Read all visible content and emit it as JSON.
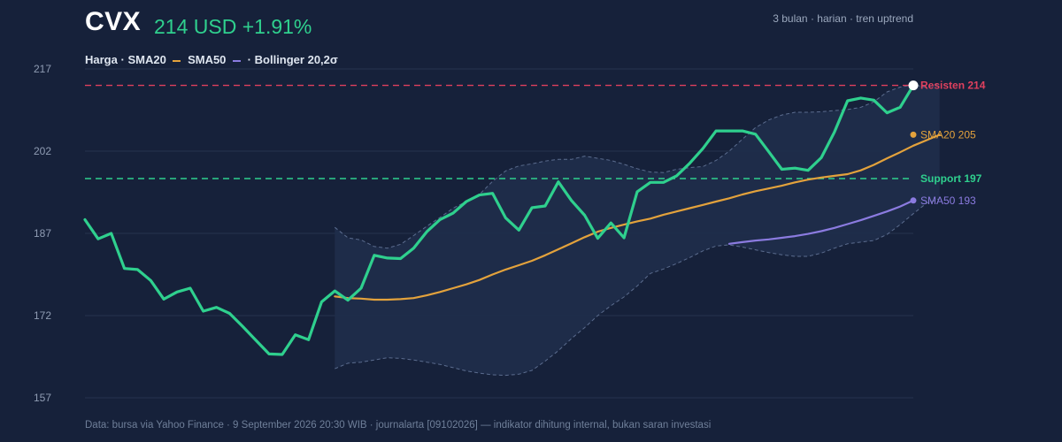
{
  "header": {
    "ticker": "CVX",
    "price": "214 USD +1.91%",
    "subtitle": "3 bulan · harian · tren uptrend"
  },
  "legend": {
    "label_price": "Harga",
    "sep": "·",
    "label_sma20": "SMA20",
    "label_sma50": "SMA50",
    "label_bb": "Bollinger 20,2σ"
  },
  "footer": "Data: bursa via Yahoo Finance · 9 September 2026 20:30 WIB · journalarta [09102026] — indikator dihitung internal, bukan saran investasi",
  "colors": {
    "background": "#16213a",
    "price": "#2fd08e",
    "sma20": "#e3a23c",
    "sma50": "#8b7be0",
    "band_fill": "#1f2d4b",
    "band_edge": "#5b6c8e",
    "resistance": "#e0405e",
    "support": "#2fd08e",
    "grid": "#26344f"
  },
  "chart_data": {
    "type": "line",
    "ylim": [
      157,
      217
    ],
    "yticks": [
      157,
      172,
      187,
      202,
      217
    ],
    "grid": true,
    "n_points": 64,
    "series": [
      {
        "name": "Harga",
        "start_index": 0,
        "values": [
          189.5,
          186.0,
          187.0,
          180.6,
          180.4,
          178.4,
          175.0,
          176.3,
          177.0,
          172.8,
          173.5,
          172.4,
          170.0,
          167.5,
          165.0,
          164.9,
          168.5,
          167.6,
          174.5,
          176.5,
          174.8,
          177.0,
          183.0,
          182.5,
          182.4,
          184.3,
          187.3,
          189.5,
          190.7,
          192.8,
          194.0,
          194.3,
          189.8,
          187.6,
          191.7,
          192.0,
          196.4,
          193.0,
          190.3,
          186.1,
          188.9,
          186.2,
          194.6,
          196.3,
          196.3,
          197.5,
          199.8,
          202.5,
          205.7,
          205.7,
          205.7,
          205.1,
          201.9,
          198.7,
          198.9,
          198.5,
          200.8,
          205.5,
          211.2,
          211.7,
          211.3,
          209.0,
          210.0,
          214.0
        ]
      },
      {
        "name": "SMA20",
        "start_index": 19,
        "values": [
          175.5,
          175.2,
          175.1,
          174.9,
          174.9,
          175.0,
          175.2,
          175.7,
          176.3,
          177.0,
          177.7,
          178.5,
          179.5,
          180.4,
          181.2,
          182.0,
          183.0,
          184.1,
          185.2,
          186.3,
          187.3,
          188.0,
          188.6,
          189.2,
          189.7,
          190.4,
          191.0,
          191.6,
          192.2,
          192.8,
          193.4,
          194.1,
          194.7,
          195.2,
          195.7,
          196.3,
          196.8,
          197.2,
          197.5,
          197.8,
          198.5,
          199.5,
          200.7,
          201.8,
          203.0,
          204.0,
          205.0
        ]
      },
      {
        "name": "SMA50",
        "start_index": 49,
        "values": [
          185.1,
          185.4,
          185.7,
          185.9,
          186.2,
          186.5,
          186.9,
          187.4,
          188.0,
          188.7,
          189.4,
          190.2,
          191.0,
          191.9,
          193.0
        ]
      }
    ],
    "bollinger": {
      "name": "Bollinger 20,2σ",
      "start_index": 19,
      "upper": [
        188.1,
        186.2,
        185.8,
        184.6,
        184.3,
        185.0,
        186.6,
        188.3,
        189.9,
        191.6,
        192.8,
        194.1,
        196.5,
        198.4,
        199.3,
        199.7,
        200.2,
        200.5,
        200.5,
        201.1,
        200.7,
        200.3,
        199.6,
        198.8,
        198.2,
        198.1,
        198.7,
        199.0,
        199.2,
        200.3,
        202.0,
        204.2,
        206.3,
        207.7,
        208.6,
        209.1,
        209.1,
        209.2,
        209.4,
        209.6,
        210.0,
        211.0,
        212.8,
        213.7,
        214.1,
        213.7,
        214.4
      ],
      "lower": [
        162.3,
        163.3,
        163.5,
        163.9,
        164.3,
        164.2,
        163.9,
        163.5,
        163.1,
        162.5,
        161.9,
        161.5,
        161.2,
        161.1,
        161.3,
        162.0,
        163.7,
        165.6,
        167.8,
        169.8,
        172.0,
        173.8,
        175.4,
        177.4,
        179.7,
        180.5,
        181.5,
        182.6,
        183.8,
        184.7,
        184.9,
        184.5,
        184.0,
        183.5,
        183.1,
        182.8,
        182.8,
        183.4,
        184.3,
        185.1,
        185.4,
        185.7,
        186.8,
        188.6,
        190.6,
        192.5,
        193.3
      ]
    },
    "horizontal_lines": [
      {
        "label": "Resisten 214",
        "value": 214,
        "color": "#e0405e"
      },
      {
        "label": "Support 197",
        "value": 197,
        "color": "#2fd08e"
      }
    ],
    "end_labels": [
      {
        "label": "SMA20 205",
        "value": 205,
        "color": "#e3a23c"
      },
      {
        "label": "SMA50 193",
        "value": 193,
        "color": "#8b7be0"
      }
    ]
  }
}
